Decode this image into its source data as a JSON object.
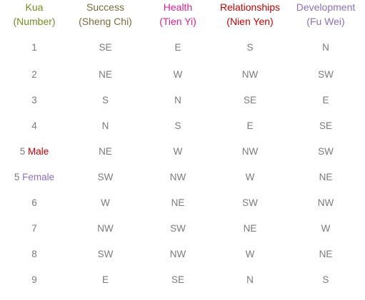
{
  "colors": {
    "kua": "#6f8f1f",
    "success": "#7a6a3a",
    "health": "#e0208f",
    "relationships": "#cc0000",
    "development": "#8f6fbf",
    "cell_text": "#7a7a7a",
    "male": "#cc0000",
    "female": "#8f6fbf"
  },
  "headers": [
    {
      "title": "Kua",
      "subtitle": "(Number)"
    },
    {
      "title": "Success",
      "subtitle": "(Sheng Chi)"
    },
    {
      "title": "Health",
      "subtitle": "(Tien Yi)"
    },
    {
      "title": "Relationships",
      "subtitle": "(Nien Yen)"
    },
    {
      "title": "Development",
      "subtitle": "(Fu Wei)"
    }
  ],
  "rows": [
    {
      "kua": "1",
      "label": "",
      "success": "SE",
      "health": "E",
      "relationships": "S",
      "development": "N"
    },
    {
      "kua": "2",
      "label": "",
      "success": "NE",
      "health": "W",
      "relationships": "NW",
      "development": "SW"
    },
    {
      "kua": "3",
      "label": "",
      "success": "S",
      "health": "N",
      "relationships": "SE",
      "development": "E"
    },
    {
      "kua": "4",
      "label": "",
      "success": "N",
      "health": "S",
      "relationships": "E",
      "development": "SE"
    },
    {
      "kua": "5",
      "label": "Male",
      "success": "NE",
      "health": "W",
      "relationships": "NW",
      "development": "SW"
    },
    {
      "kua": "5",
      "label": "Female",
      "success": "SW",
      "health": "NW",
      "relationships": "W",
      "development": "NE"
    },
    {
      "kua": "6",
      "label": "",
      "success": "W",
      "health": "NE",
      "relationships": "SW",
      "development": "NW"
    },
    {
      "kua": "7",
      "label": "",
      "success": "NW",
      "health": "SW",
      "relationships": "NE",
      "development": "W"
    },
    {
      "kua": "8",
      "label": "",
      "success": "SW",
      "health": "NW",
      "relationships": "W",
      "development": "NE"
    },
    {
      "kua": "9",
      "label": "",
      "success": "E",
      "health": "SE",
      "relationships": "N",
      "development": "S"
    }
  ]
}
